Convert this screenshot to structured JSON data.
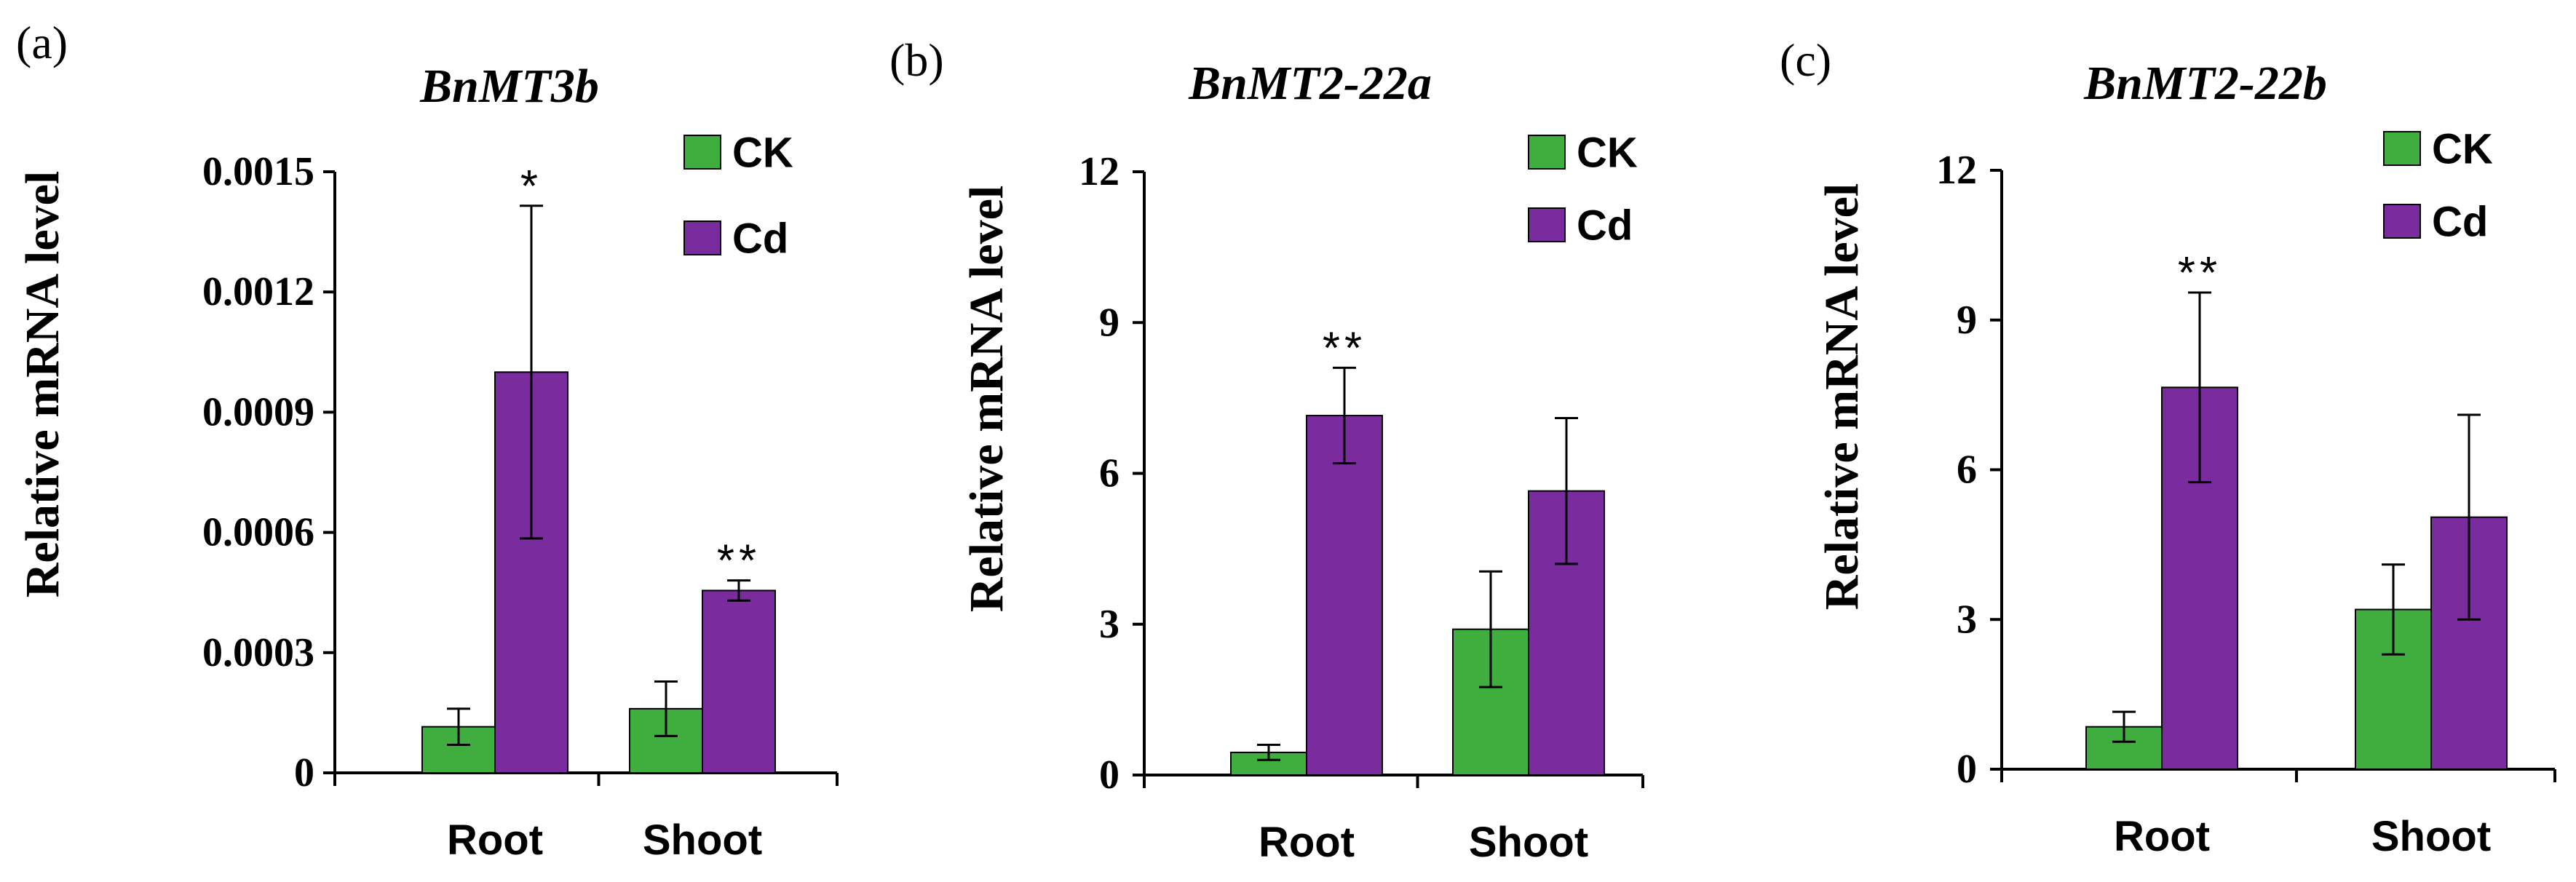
{
  "chart_data": [
    {
      "panel_label": "(a)",
      "type": "bar",
      "title": "BnMT3b",
      "ylabel": "Relative mRNA level",
      "xlabel": "",
      "categories": [
        "Root",
        "Shoot"
      ],
      "ylim": [
        0,
        0.0015
      ],
      "yticks": [
        0,
        0.0003,
        0.0006,
        0.0009,
        0.0012,
        0.0015
      ],
      "ytick_labels": [
        "0",
        "0.0003",
        "0.0006",
        "0.0009",
        "0.0012",
        "0.0015"
      ],
      "series": [
        {
          "name": "CK",
          "color": "#3fae3f",
          "values": [
            0.000115,
            0.00016
          ],
          "errors": [
            4.5e-05,
            6.8e-05
          ]
        },
        {
          "name": "Cd",
          "color": "#7a2b9e",
          "values": [
            0.001,
            0.000455
          ],
          "errors": [
            0.000415,
            2.5e-05
          ]
        }
      ],
      "annotations": [
        {
          "text": "*",
          "category": "Root",
          "series": "Cd"
        },
        {
          "text": "**",
          "category": "Shoot",
          "series": "Cd"
        }
      ],
      "legend_position": "top-right",
      "grid": false
    },
    {
      "panel_label": "(b)",
      "type": "bar",
      "title": "BnMT2-22a",
      "ylabel": "Relative mRNA level",
      "xlabel": "",
      "categories": [
        "Root",
        "Shoot"
      ],
      "ylim": [
        0,
        12
      ],
      "yticks": [
        0,
        3,
        6,
        9,
        12
      ],
      "ytick_labels": [
        "0",
        "3",
        "6",
        "9",
        "12"
      ],
      "series": [
        {
          "name": "CK",
          "color": "#3fae3f",
          "values": [
            0.45,
            2.9
          ],
          "errors": [
            0.15,
            1.15
          ]
        },
        {
          "name": "Cd",
          "color": "#7a2b9e",
          "values": [
            7.15,
            5.65
          ],
          "errors": [
            0.95,
            1.45
          ]
        }
      ],
      "annotations": [
        {
          "text": "**",
          "category": "Root",
          "series": "Cd"
        }
      ],
      "legend_position": "top-right",
      "grid": false
    },
    {
      "panel_label": "(c)",
      "type": "bar",
      "title": "BnMT2-22b",
      "ylabel": "Relative mRNA level",
      "xlabel": "",
      "categories": [
        "Root",
        "Shoot"
      ],
      "ylim": [
        0,
        12
      ],
      "yticks": [
        0,
        3,
        6,
        9,
        12
      ],
      "ytick_labels": [
        "0",
        "3",
        "6",
        "9",
        "12"
      ],
      "series": [
        {
          "name": "CK",
          "color": "#3fae3f",
          "values": [
            0.85,
            3.2
          ],
          "errors": [
            0.3,
            0.9
          ]
        },
        {
          "name": "Cd",
          "color": "#7a2b9e",
          "values": [
            7.65,
            5.05
          ],
          "errors": [
            1.9,
            2.05
          ]
        }
      ],
      "annotations": [
        {
          "text": "**",
          "category": "Root",
          "series": "Cd"
        }
      ],
      "legend_position": "top-right",
      "grid": false
    }
  ]
}
